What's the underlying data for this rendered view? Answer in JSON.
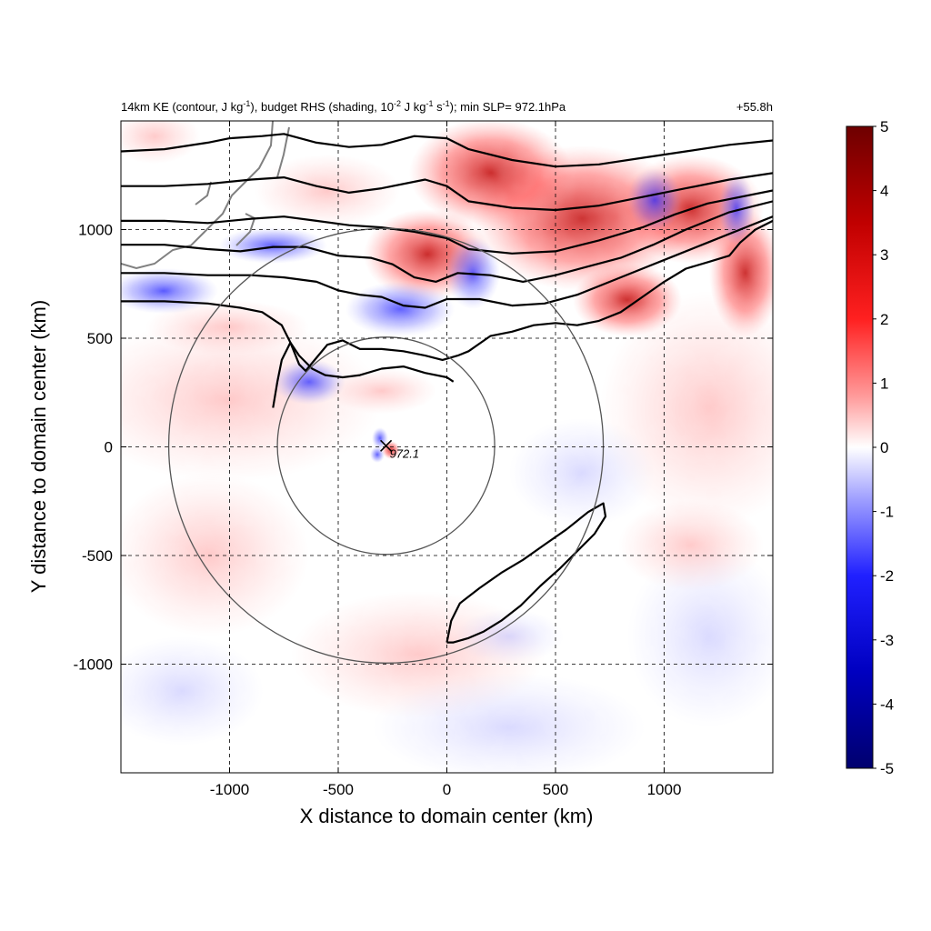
{
  "chart_data": {
    "type": "heatmap",
    "title_left": {
      "base": "14km KE (contour, J kg",
      "sup1": "-1",
      "mid1": "), budget RHS (shading, 10",
      "sup2": "-2",
      "mid2": " J kg",
      "sup3": "-1",
      "mid3": " s",
      "sup4": "-1",
      "end": "); min SLP= 972.1hPa"
    },
    "title_right": "+55.8h",
    "xlabel": "X distance to domain center (km)",
    "ylabel": "Y distance to domain center (km)",
    "xlim": [
      -1500,
      1500
    ],
    "ylim": [
      -1500,
      1500
    ],
    "xticks": [
      -1000,
      -500,
      0,
      500,
      1000
    ],
    "yticks": [
      1000,
      500,
      0,
      -500,
      -1000
    ],
    "grid": true,
    "colorbar": {
      "range": [
        -5,
        5
      ],
      "ticks": [
        5,
        4,
        3,
        2,
        1,
        0,
        -1,
        -2,
        -3,
        -4,
        -5
      ],
      "colors": [
        "#00007a",
        "#0000ff",
        "#8a8aff",
        "#ffffff",
        "#ff8a8a",
        "#ff0000",
        "#7a0000"
      ]
    },
    "storm_center": {
      "x": -280,
      "y": 5,
      "label": "972.1"
    },
    "range_circles_km": [
      {
        "cx": -280,
        "cy": 5,
        "r": 500
      },
      {
        "cx": -280,
        "cy": 5,
        "r": 1000
      }
    ],
    "contours_km": [
      [
        [
          -1500,
          1360
        ],
        [
          -1300,
          1370
        ],
        [
          -1100,
          1400
        ],
        [
          -1000,
          1420
        ],
        [
          -850,
          1430
        ],
        [
          -750,
          1440
        ],
        [
          -600,
          1400
        ],
        [
          -450,
          1380
        ],
        [
          -300,
          1390
        ],
        [
          -150,
          1430
        ],
        [
          0,
          1420
        ],
        [
          100,
          1370
        ],
        [
          300,
          1320
        ],
        [
          500,
          1290
        ],
        [
          700,
          1300
        ],
        [
          900,
          1330
        ],
        [
          1100,
          1360
        ],
        [
          1300,
          1390
        ],
        [
          1500,
          1410
        ]
      ],
      [
        [
          -1500,
          1200
        ],
        [
          -1300,
          1200
        ],
        [
          -1100,
          1210
        ],
        [
          -900,
          1230
        ],
        [
          -750,
          1240
        ],
        [
          -600,
          1200
        ],
        [
          -450,
          1170
        ],
        [
          -300,
          1190
        ],
        [
          -100,
          1230
        ],
        [
          0,
          1200
        ],
        [
          100,
          1130
        ],
        [
          300,
          1100
        ],
        [
          500,
          1090
        ],
        [
          700,
          1110
        ],
        [
          900,
          1150
        ],
        [
          1100,
          1190
        ],
        [
          1300,
          1230
        ],
        [
          1500,
          1260
        ]
      ],
      [
        [
          -1500,
          1040
        ],
        [
          -1300,
          1040
        ],
        [
          -1100,
          1030
        ],
        [
          -900,
          1050
        ],
        [
          -750,
          1060
        ],
        [
          -600,
          1040
        ],
        [
          -450,
          1020
        ],
        [
          -300,
          1010
        ],
        [
          -150,
          990
        ],
        [
          0,
          960
        ],
        [
          100,
          910
        ],
        [
          300,
          890
        ],
        [
          500,
          900
        ],
        [
          700,
          950
        ],
        [
          900,
          1010
        ],
        [
          1050,
          1070
        ],
        [
          1200,
          1120
        ],
        [
          1500,
          1180
        ]
      ],
      [
        [
          -1500,
          930
        ],
        [
          -1300,
          930
        ],
        [
          -1100,
          910
        ],
        [
          -950,
          900
        ],
        [
          -800,
          920
        ],
        [
          -650,
          920
        ],
        [
          -500,
          880
        ],
        [
          -350,
          870
        ],
        [
          -250,
          840
        ],
        [
          -150,
          780
        ],
        [
          -50,
          760
        ],
        [
          50,
          800
        ],
        [
          200,
          790
        ],
        [
          350,
          760
        ],
        [
          500,
          790
        ],
        [
          650,
          830
        ],
        [
          800,
          870
        ],
        [
          950,
          930
        ],
        [
          1100,
          1000
        ],
        [
          1300,
          1080
        ],
        [
          1500,
          1130
        ]
      ],
      [
        [
          -1500,
          800
        ],
        [
          -1300,
          800
        ],
        [
          -1100,
          790
        ],
        [
          -900,
          790
        ],
        [
          -750,
          780
        ],
        [
          -600,
          760
        ],
        [
          -500,
          720
        ],
        [
          -400,
          700
        ],
        [
          -300,
          690
        ],
        [
          -200,
          650
        ],
        [
          -100,
          640
        ],
        [
          0,
          680
        ],
        [
          150,
          680
        ],
        [
          300,
          650
        ],
        [
          450,
          660
        ],
        [
          600,
          700
        ],
        [
          750,
          760
        ],
        [
          900,
          820
        ],
        [
          1050,
          880
        ],
        [
          1200,
          940
        ],
        [
          1350,
          1000
        ],
        [
          1500,
          1060
        ]
      ],
      [
        [
          -1500,
          670
        ],
        [
          -1300,
          670
        ],
        [
          -1100,
          660
        ],
        [
          -950,
          640
        ],
        [
          -850,
          620
        ],
        [
          -760,
          560
        ],
        [
          -720,
          480
        ],
        [
          -700,
          430
        ],
        [
          -680,
          380
        ],
        [
          -650,
          350
        ],
        [
          -600,
          410
        ],
        [
          -550,
          470
        ],
        [
          -480,
          490
        ],
        [
          -400,
          450
        ],
        [
          -300,
          450
        ],
        [
          -200,
          440
        ],
        [
          -100,
          420
        ],
        [
          -20,
          400
        ],
        [
          50,
          420
        ],
        [
          100,
          440
        ],
        [
          200,
          510
        ],
        [
          300,
          530
        ],
        [
          400,
          560
        ],
        [
          500,
          570
        ],
        [
          600,
          560
        ],
        [
          700,
          580
        ],
        [
          800,
          620
        ],
        [
          900,
          690
        ],
        [
          1000,
          760
        ],
        [
          1100,
          820
        ],
        [
          1200,
          850
        ],
        [
          1300,
          880
        ],
        [
          1350,
          940
        ],
        [
          1420,
          1000
        ],
        [
          1500,
          1040
        ]
      ],
      [
        [
          -800,
          180
        ],
        [
          -780,
          300
        ],
        [
          -760,
          400
        ],
        [
          -720,
          480
        ],
        [
          -680,
          420
        ],
        [
          -620,
          360
        ],
        [
          -560,
          330
        ],
        [
          -480,
          320
        ],
        [
          -400,
          330
        ],
        [
          -300,
          360
        ],
        [
          -200,
          370
        ],
        [
          -100,
          340
        ],
        [
          0,
          320
        ],
        [
          30,
          300
        ]
      ],
      [
        [
          0,
          -900
        ],
        [
          20,
          -800
        ],
        [
          60,
          -720
        ],
        [
          150,
          -650
        ],
        [
          250,
          -580
        ],
        [
          350,
          -520
        ],
        [
          450,
          -450
        ],
        [
          550,
          -380
        ],
        [
          650,
          -300
        ],
        [
          720,
          -260
        ],
        [
          730,
          -320
        ],
        [
          680,
          -400
        ],
        [
          600,
          -480
        ],
        [
          520,
          -560
        ],
        [
          430,
          -640
        ],
        [
          340,
          -730
        ],
        [
          250,
          -800
        ],
        [
          170,
          -850
        ],
        [
          100,
          -880
        ],
        [
          30,
          -900
        ],
        [
          0,
          -900
        ]
      ]
    ]
  }
}
